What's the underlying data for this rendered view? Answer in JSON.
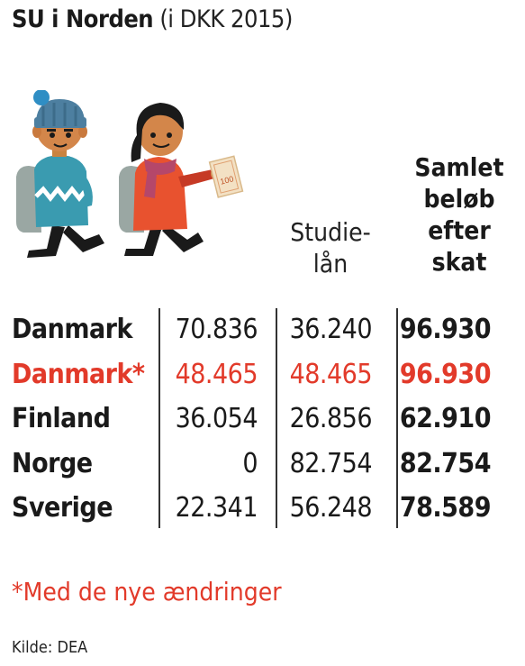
{
  "title": {
    "main": "SU i Norden",
    "sub": "(i DKK 2015)"
  },
  "chart_data": {
    "type": "table",
    "columns": [
      "",
      "",
      "Studie-\nlån",
      "Samlet\nbeløb\nefter\nskat"
    ],
    "rows": [
      {
        "country": "Danmark",
        "su": "70.836",
        "laan": "36.240",
        "samlet": "96.930",
        "highlight": false
      },
      {
        "country": "Danmark*",
        "su": "48.465",
        "laan": "48.465",
        "samlet": "96.930",
        "highlight": true
      },
      {
        "country": "Finland",
        "su": "36.054",
        "laan": "26.856",
        "samlet": "62.910",
        "highlight": false
      },
      {
        "country": "Norge",
        "su": "0",
        "laan": "82.754",
        "samlet": "82.754",
        "highlight": false
      },
      {
        "country": "Sverige",
        "su": "22.341",
        "laan": "56.248",
        "samlet": "78.589",
        "highlight": false
      }
    ],
    "highlight_color": "#e23a2a"
  },
  "footnote": "*Med de nye ændringer",
  "source": "Kilde: DEA",
  "illustration": {
    "icon": "two-walking-students-illustration",
    "banknote_text": "100"
  }
}
